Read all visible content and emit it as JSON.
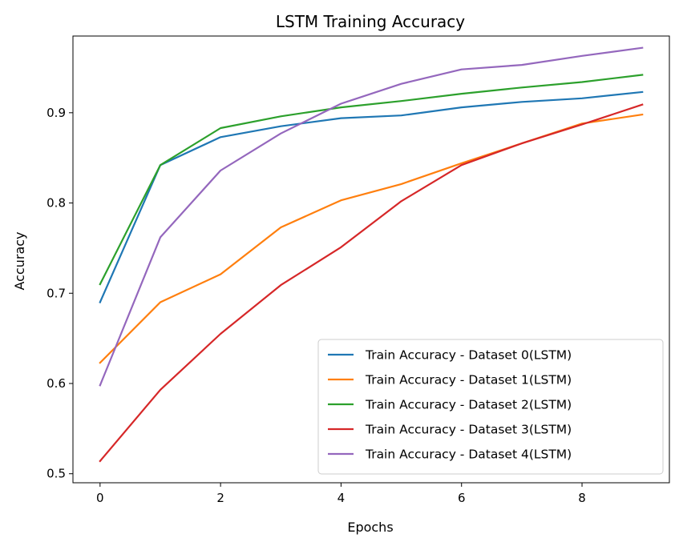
{
  "chart_data": {
    "type": "line",
    "title": "LSTM Training Accuracy",
    "xlabel": "Epochs",
    "ylabel": "Accuracy",
    "xlim": [
      -0.45,
      9.45
    ],
    "ylim": [
      0.49,
      0.985
    ],
    "xticks": [
      0,
      2,
      4,
      6,
      8
    ],
    "yticks": [
      0.5,
      0.6,
      0.7,
      0.8,
      0.9
    ],
    "xtick_labels": [
      "0",
      "2",
      "4",
      "6",
      "8"
    ],
    "ytick_labels": [
      "0.5",
      "0.6",
      "0.7",
      "0.8",
      "0.9"
    ],
    "grid": false,
    "legend_position": "lower-right",
    "x": [
      0,
      1,
      2,
      3,
      4,
      5,
      6,
      7,
      8,
      9
    ],
    "series": [
      {
        "name": "Train Accuracy - Dataset 0(LSTM)",
        "color": "#1f77b4",
        "values": [
          0.69,
          0.842,
          0.873,
          0.885,
          0.894,
          0.897,
          0.906,
          0.912,
          0.916,
          0.923
        ]
      },
      {
        "name": "Train Accuracy - Dataset 1(LSTM)",
        "color": "#ff7f0e",
        "values": [
          0.623,
          0.69,
          0.721,
          0.773,
          0.803,
          0.821,
          0.844,
          0.866,
          0.888,
          0.898
        ]
      },
      {
        "name": "Train Accuracy - Dataset 2(LSTM)",
        "color": "#2ca02c",
        "values": [
          0.71,
          0.842,
          0.883,
          0.896,
          0.906,
          0.913,
          0.921,
          0.928,
          0.934,
          0.942
        ]
      },
      {
        "name": "Train Accuracy - Dataset 3(LSTM)",
        "color": "#d62728",
        "values": [
          0.514,
          0.593,
          0.655,
          0.709,
          0.751,
          0.802,
          0.842,
          0.866,
          0.887,
          0.909
        ]
      },
      {
        "name": "Train Accuracy - Dataset 4(LSTM)",
        "color": "#9467bd",
        "values": [
          0.598,
          0.762,
          0.836,
          0.877,
          0.91,
          0.932,
          0.948,
          0.953,
          0.963,
          0.972
        ]
      }
    ]
  }
}
